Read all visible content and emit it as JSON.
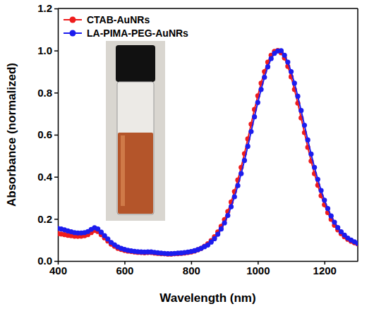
{
  "chart_data": {
    "type": "line",
    "x_label": "Wavelength (nm)",
    "y_label": "Absorbance (normalized)",
    "x": [
      400,
      410,
      420,
      430,
      440,
      450,
      460,
      470,
      480,
      490,
      500,
      510,
      520,
      530,
      540,
      550,
      560,
      570,
      580,
      590,
      600,
      610,
      620,
      630,
      640,
      650,
      660,
      670,
      680,
      690,
      700,
      710,
      720,
      730,
      740,
      750,
      760,
      770,
      780,
      790,
      800,
      810,
      820,
      830,
      840,
      850,
      860,
      870,
      880,
      890,
      900,
      910,
      920,
      930,
      940,
      950,
      960,
      970,
      980,
      990,
      1000,
      1010,
      1020,
      1030,
      1040,
      1050,
      1060,
      1070,
      1080,
      1090,
      1100,
      1110,
      1120,
      1130,
      1140,
      1150,
      1160,
      1170,
      1180,
      1190,
      1200,
      1210,
      1220,
      1230,
      1240,
      1250,
      1260,
      1270,
      1280,
      1290,
      1300
    ],
    "series": [
      {
        "name": "CTAB-AuNRs",
        "color": "#ee1c1c",
        "marker": "circle",
        "line_style": "solid",
        "values": [
          0.13,
          0.128,
          0.125,
          0.122,
          0.12,
          0.118,
          0.117,
          0.118,
          0.12,
          0.125,
          0.135,
          0.145,
          0.14,
          0.125,
          0.11,
          0.095,
          0.08,
          0.07,
          0.06,
          0.055,
          0.05,
          0.047,
          0.045,
          0.043,
          0.041,
          0.04,
          0.039,
          0.04,
          0.04,
          0.038,
          0.036,
          0.035,
          0.034,
          0.033,
          0.033,
          0.034,
          0.035,
          0.036,
          0.038,
          0.04,
          0.043,
          0.047,
          0.053,
          0.06,
          0.07,
          0.082,
          0.097,
          0.115,
          0.138,
          0.165,
          0.197,
          0.235,
          0.28,
          0.33,
          0.385,
          0.445,
          0.51,
          0.58,
          0.65,
          0.72,
          0.785,
          0.845,
          0.9,
          0.945,
          0.978,
          0.996,
          1.0,
          0.99,
          0.965,
          0.925,
          0.875,
          0.815,
          0.75,
          0.68,
          0.61,
          0.54,
          0.475,
          0.415,
          0.36,
          0.31,
          0.267,
          0.23,
          0.198,
          0.17,
          0.148,
          0.13,
          0.115,
          0.103,
          0.094,
          0.087,
          0.081
        ]
      },
      {
        "name": "LA-PIMA-PEG-AuNRs",
        "color": "#1c1cee",
        "marker": "circle",
        "line_style": "solid",
        "values": [
          0.155,
          0.152,
          0.148,
          0.143,
          0.139,
          0.135,
          0.133,
          0.133,
          0.135,
          0.14,
          0.15,
          0.158,
          0.152,
          0.137,
          0.12,
          0.104,
          0.088,
          0.077,
          0.067,
          0.06,
          0.055,
          0.051,
          0.048,
          0.046,
          0.044,
          0.043,
          0.042,
          0.043,
          0.043,
          0.041,
          0.039,
          0.037,
          0.036,
          0.035,
          0.035,
          0.036,
          0.037,
          0.038,
          0.04,
          0.042,
          0.045,
          0.049,
          0.054,
          0.06,
          0.068,
          0.076,
          0.09,
          0.106,
          0.127,
          0.152,
          0.181,
          0.216,
          0.258,
          0.305,
          0.358,
          0.415,
          0.478,
          0.545,
          0.615,
          0.685,
          0.753,
          0.815,
          0.873,
          0.923,
          0.962,
          0.987,
          0.998,
          0.999,
          0.978,
          0.945,
          0.9,
          0.845,
          0.783,
          0.715,
          0.645,
          0.575,
          0.508,
          0.445,
          0.388,
          0.335,
          0.289,
          0.249,
          0.214,
          0.184,
          0.159,
          0.139,
          0.123,
          0.109,
          0.099,
          0.091,
          0.084
        ]
      }
    ],
    "xlim": [
      400,
      1300
    ],
    "xticks": [
      400,
      600,
      800,
      1000,
      1200
    ],
    "ylim": [
      0,
      1.2
    ],
    "yticks": [
      {
        "value": 0,
        "label": "0.0"
      },
      0.2,
      0.4,
      0.6,
      0.8,
      {
        "value": 1,
        "label": "1.0"
      },
      1.2
    ],
    "grid": false,
    "legend": "upper left"
  }
}
